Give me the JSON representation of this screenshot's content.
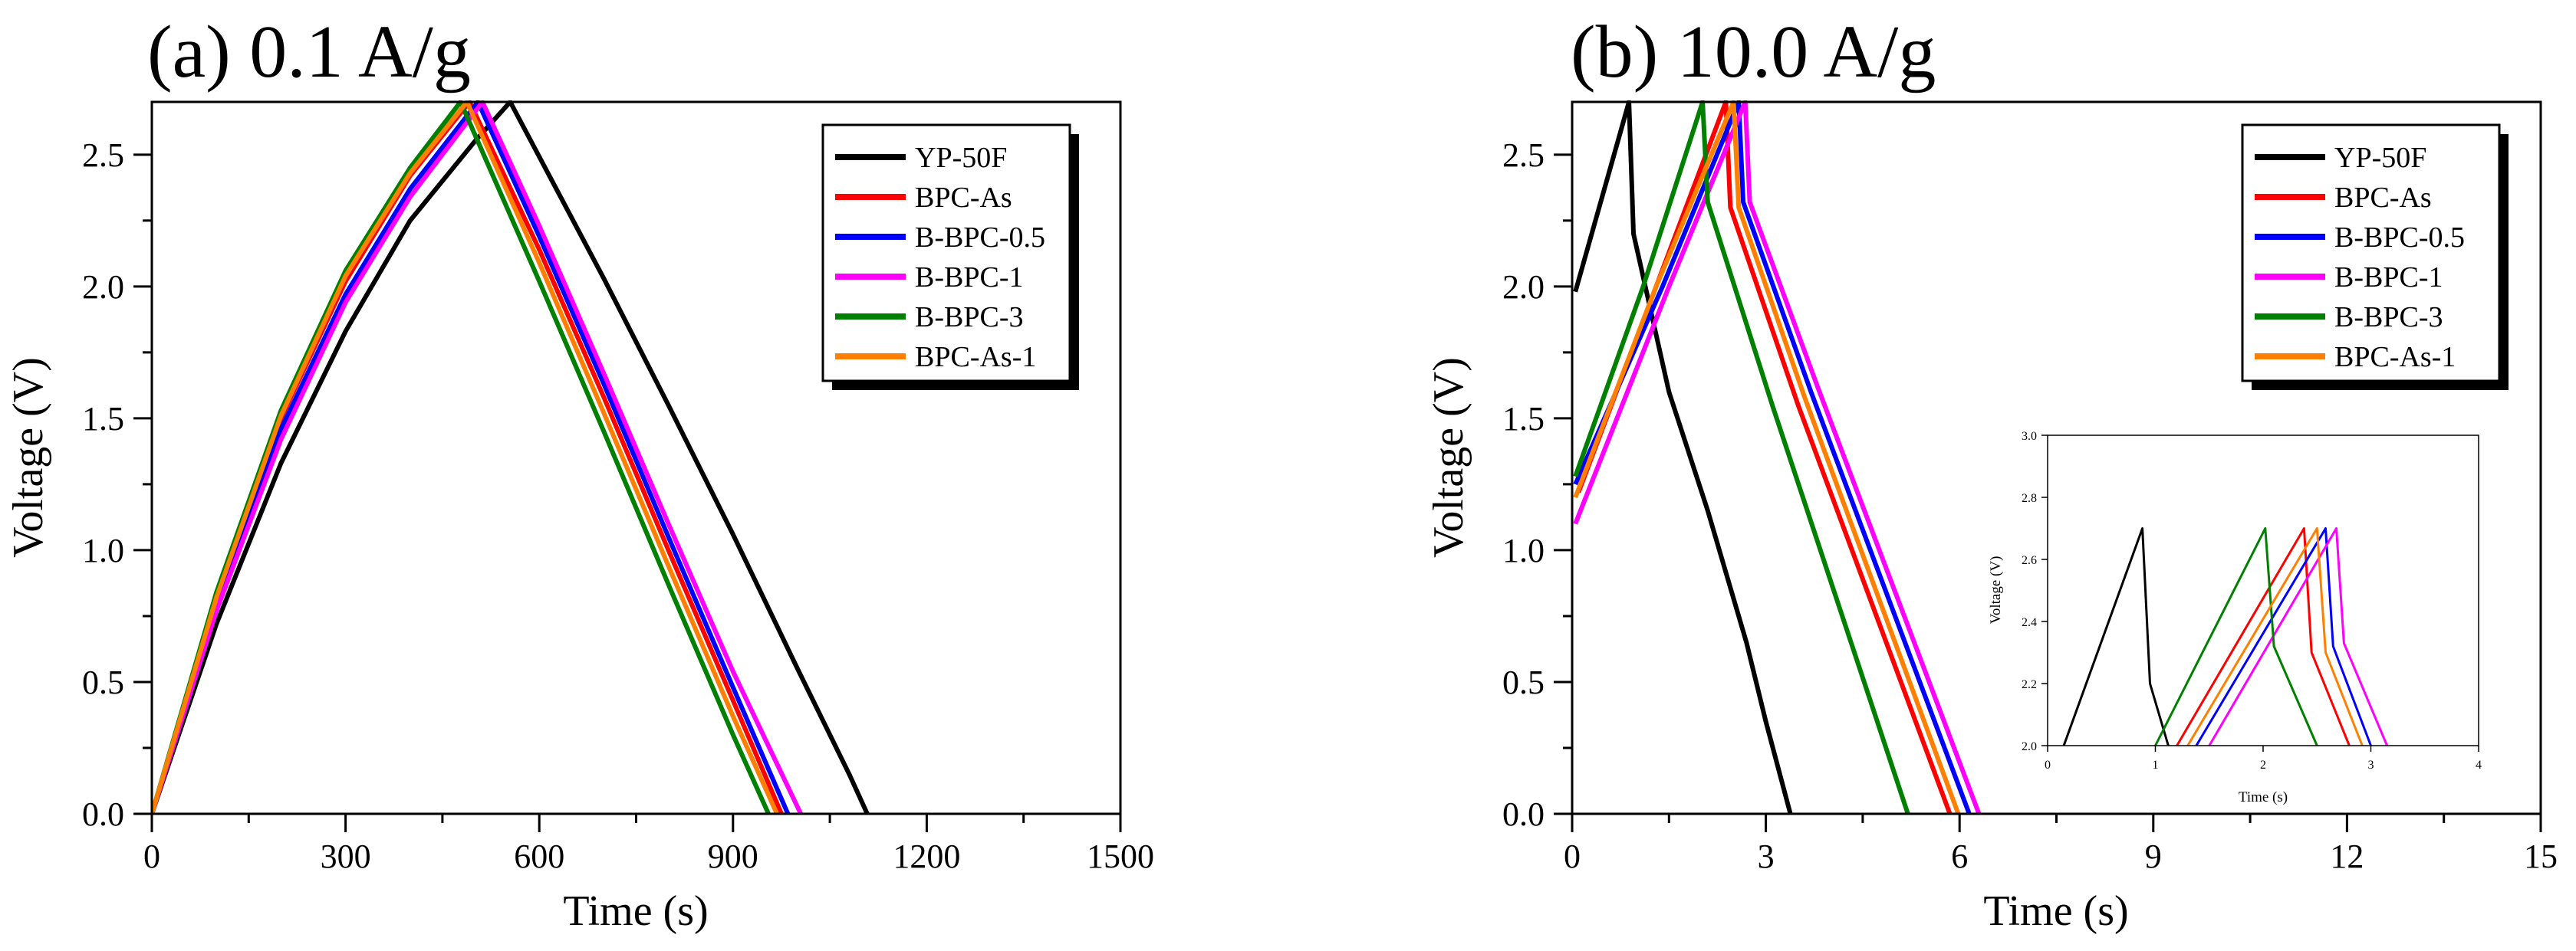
{
  "chart_data": [
    {
      "type": "line",
      "title": "(a) 0.1 A/g",
      "xlabel": "Time (s)",
      "ylabel": "Voltage (V)",
      "xlim": [
        0,
        1500
      ],
      "ylim": [
        0,
        2.7
      ],
      "xticks": [
        "0",
        "300",
        "600",
        "900",
        "1200",
        "1500"
      ],
      "yticks": [
        "0.0",
        "0.5",
        "1.0",
        "1.5",
        "2.0",
        "2.5"
      ],
      "legend": [
        "YP-50F",
        "BPC-As",
        "B-BPC-0.5",
        "B-BPC-1",
        "B-BPC-3",
        "BPC-As-1"
      ],
      "legend_position": "top-right",
      "series": [
        {
          "name": "YP-50F",
          "color": "#000000",
          "points": [
            [
              0,
              0
            ],
            [
              100,
              0.72
            ],
            [
              200,
              1.33
            ],
            [
              300,
              1.83
            ],
            [
              400,
              2.25
            ],
            [
              500,
              2.55
            ],
            [
              555,
              2.7
            ],
            [
              700,
              2.03
            ],
            [
              800,
              1.55
            ],
            [
              900,
              1.06
            ],
            [
              1000,
              0.55
            ],
            [
              1080,
              0.15
            ],
            [
              1108,
              0
            ]
          ]
        },
        {
          "name": "BPC-As",
          "color": "#ff0000",
          "points": [
            [
              0,
              0
            ],
            [
              100,
              0.81
            ],
            [
              200,
              1.5
            ],
            [
              300,
              2.02
            ],
            [
              400,
              2.42
            ],
            [
              492,
              2.7
            ],
            [
              600,
              2.14
            ],
            [
              700,
              1.58
            ],
            [
              800,
              1.0
            ],
            [
              900,
              0.43
            ],
            [
              975,
              0
            ]
          ]
        },
        {
          "name": "B-BPC-0.5",
          "color": "#0000ff",
          "points": [
            [
              0,
              0
            ],
            [
              100,
              0.79
            ],
            [
              200,
              1.46
            ],
            [
              300,
              1.97
            ],
            [
              400,
              2.37
            ],
            [
              505,
              2.7
            ],
            [
              600,
              2.19
            ],
            [
              700,
              1.63
            ],
            [
              800,
              1.05
            ],
            [
              900,
              0.48
            ],
            [
              985,
              0
            ]
          ]
        },
        {
          "name": "B-BPC-1",
          "color": "#ff00ff",
          "points": [
            [
              0,
              0
            ],
            [
              100,
              0.77
            ],
            [
              200,
              1.42
            ],
            [
              300,
              1.94
            ],
            [
              400,
              2.34
            ],
            [
              512,
              2.7
            ],
            [
              600,
              2.23
            ],
            [
              700,
              1.67
            ],
            [
              800,
              1.1
            ],
            [
              900,
              0.54
            ],
            [
              1005,
              0
            ]
          ]
        },
        {
          "name": "B-BPC-3",
          "color": "#008000",
          "points": [
            [
              0,
              0
            ],
            [
              100,
              0.84
            ],
            [
              200,
              1.53
            ],
            [
              300,
              2.06
            ],
            [
              400,
              2.45
            ],
            [
              478,
              2.7
            ],
            [
              600,
              2.02
            ],
            [
              700,
              1.45
            ],
            [
              800,
              0.87
            ],
            [
              900,
              0.3
            ],
            [
              955,
              0
            ]
          ]
        },
        {
          "name": "BPC-As-1",
          "color": "#ff8000",
          "points": [
            [
              0,
              0
            ],
            [
              100,
              0.82
            ],
            [
              200,
              1.51
            ],
            [
              300,
              2.04
            ],
            [
              400,
              2.43
            ],
            [
              488,
              2.7
            ],
            [
              600,
              2.09
            ],
            [
              700,
              1.52
            ],
            [
              800,
              0.94
            ],
            [
              900,
              0.37
            ],
            [
              968,
              0
            ]
          ]
        }
      ]
    },
    {
      "type": "line",
      "title": "(b) 10.0 A/g",
      "xlabel": "Time (s)",
      "ylabel": "Voltage (V)",
      "xlim": [
        0,
        15
      ],
      "ylim": [
        0,
        2.7
      ],
      "xticks": [
        "0",
        "3",
        "6",
        "9",
        "12",
        "15"
      ],
      "yticks": [
        "0.0",
        "0.5",
        "1.0",
        "1.5",
        "2.0",
        "2.5"
      ],
      "legend": [
        "YP-50F",
        "BPC-As",
        "B-BPC-0.5",
        "B-BPC-1",
        "B-BPC-3",
        "BPC-As-1"
      ],
      "legend_position": "top-right",
      "series": [
        {
          "name": "YP-50F",
          "color": "#000000",
          "points": [
            [
              0.05,
              1.98
            ],
            [
              0.88,
              2.7
            ],
            [
              0.95,
              2.2
            ],
            [
              1.5,
              1.6
            ],
            [
              2.1,
              1.15
            ],
            [
              2.7,
              0.65
            ],
            [
              3.0,
              0.35
            ],
            [
              3.38,
              0
            ]
          ]
        },
        {
          "name": "BPC-As",
          "color": "#ff0000",
          "points": [
            [
              0.1,
              1.22
            ],
            [
              1.3,
              2.0
            ],
            [
              2.38,
              2.7
            ],
            [
              2.45,
              2.3
            ],
            [
              3.5,
              1.55
            ],
            [
              5.85,
              0
            ]
          ]
        },
        {
          "name": "B-BPC-0.5",
          "color": "#0000ff",
          "points": [
            [
              0.05,
              1.25
            ],
            [
              1.4,
              2.0
            ],
            [
              2.58,
              2.7
            ],
            [
              2.65,
              2.32
            ],
            [
              3.7,
              1.6
            ],
            [
              6.15,
              0
            ]
          ]
        },
        {
          "name": "B-BPC-1",
          "color": "#ff00ff",
          "points": [
            [
              0.05,
              1.1
            ],
            [
              1.5,
              2.0
            ],
            [
              2.68,
              2.7
            ],
            [
              2.75,
              2.32
            ],
            [
              3.8,
              1.62
            ],
            [
              6.3,
              0
            ]
          ]
        },
        {
          "name": "B-BPC-3",
          "color": "#008000",
          "points": [
            [
              0.05,
              1.28
            ],
            [
              1.1,
              2.0
            ],
            [
              2.02,
              2.7
            ],
            [
              2.1,
              2.32
            ],
            [
              3.1,
              1.55
            ],
            [
              5.2,
              0
            ]
          ]
        },
        {
          "name": "BPC-As-1",
          "color": "#ff8000",
          "points": [
            [
              0.05,
              1.2
            ],
            [
              1.3,
              2.0
            ],
            [
              2.5,
              2.7
            ],
            [
              2.58,
              2.3
            ],
            [
              3.6,
              1.58
            ],
            [
              5.98,
              0
            ]
          ]
        }
      ]
    },
    {
      "type": "line",
      "title": "",
      "xlabel": "Time (s)",
      "ylabel": "Voltage (V)",
      "xlim": [
        0,
        4
      ],
      "ylim": [
        2.0,
        3.0
      ],
      "xticks": [
        "0",
        "1",
        "2",
        "3",
        "4"
      ],
      "yticks": [
        "2.0",
        "2.2",
        "2.4",
        "2.6",
        "2.8",
        "3.0"
      ],
      "series": [
        {
          "name": "YP-50F",
          "color": "#000000",
          "points": [
            [
              0.15,
              2.0
            ],
            [
              0.88,
              2.7
            ],
            [
              0.95,
              2.2
            ],
            [
              1.12,
              2.0
            ]
          ]
        },
        {
          "name": "BPC-As",
          "color": "#ff0000",
          "points": [
            [
              1.2,
              2.0
            ],
            [
              2.38,
              2.7
            ],
            [
              2.45,
              2.3
            ],
            [
              2.8,
              2.0
            ]
          ]
        },
        {
          "name": "B-BPC-0.5",
          "color": "#0000ff",
          "points": [
            [
              1.38,
              2.0
            ],
            [
              2.58,
              2.7
            ],
            [
              2.65,
              2.32
            ],
            [
              3.0,
              2.0
            ]
          ]
        },
        {
          "name": "B-BPC-1",
          "color": "#ff00ff",
          "points": [
            [
              1.5,
              2.0
            ],
            [
              2.68,
              2.7
            ],
            [
              2.75,
              2.33
            ],
            [
              3.15,
              2.0
            ]
          ]
        },
        {
          "name": "B-BPC-3",
          "color": "#008000",
          "points": [
            [
              1.0,
              2.0
            ],
            [
              2.02,
              2.7
            ],
            [
              2.1,
              2.32
            ],
            [
              2.5,
              2.0
            ]
          ]
        },
        {
          "name": "BPC-As-1",
          "color": "#ff8000",
          "points": [
            [
              1.3,
              2.0
            ],
            [
              2.5,
              2.7
            ],
            [
              2.58,
              2.3
            ],
            [
              2.92,
              2.0
            ]
          ]
        }
      ]
    }
  ]
}
